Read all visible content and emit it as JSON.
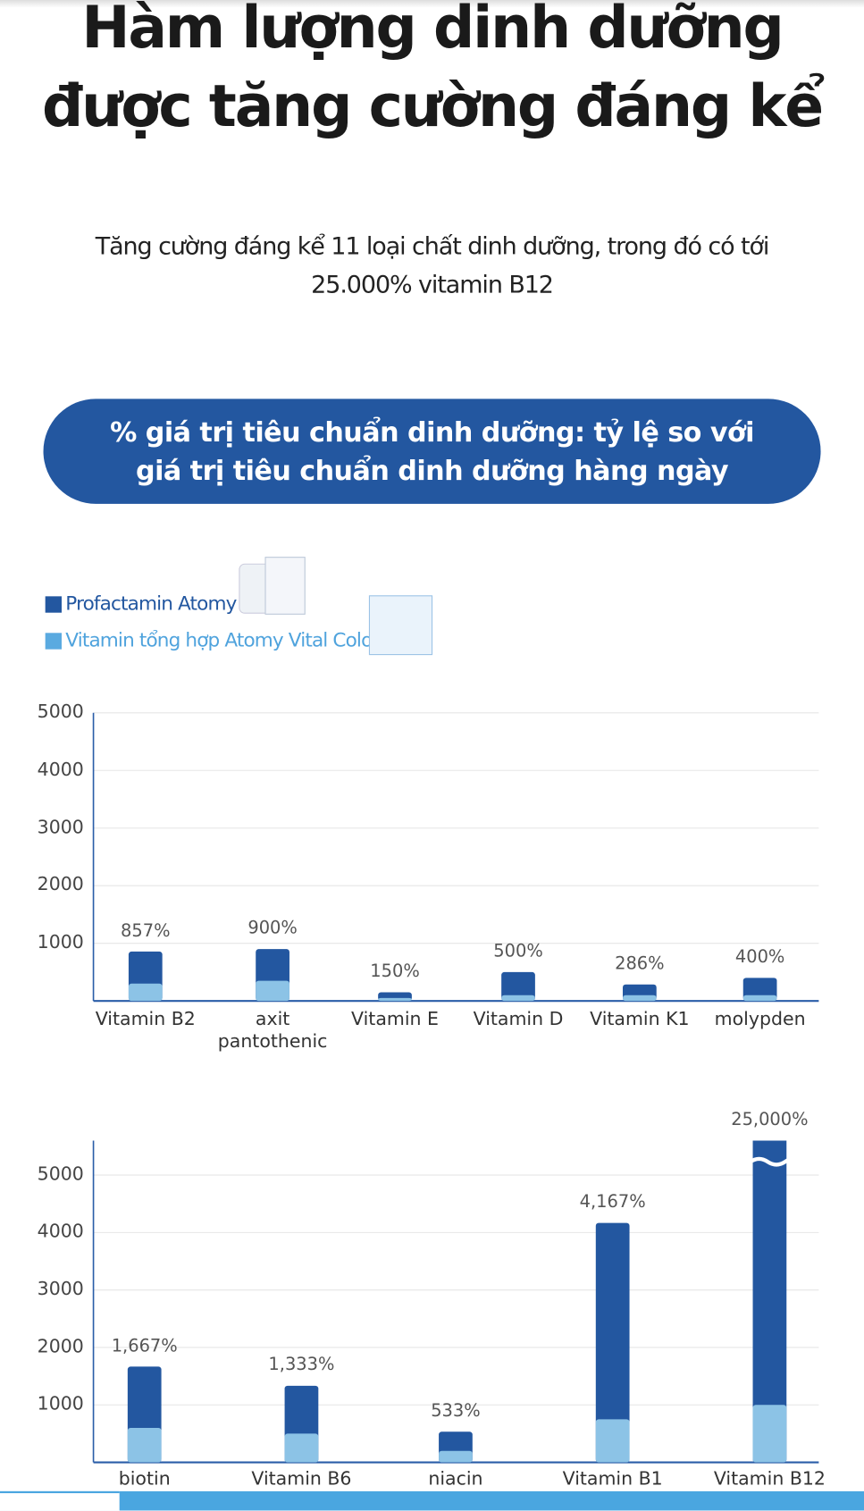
{
  "header": {
    "title": [
      "Hàm lượng dinh dưỡng",
      "được tăng cường đáng kể"
    ],
    "subtitle": "Tăng cường đáng kể 11 loại chất dinh dưỡng, trong đó có tới 25.000% vitamin B12",
    "banner": "% giá trị tiêu chuẩn dinh dưỡng: tỷ lệ so với giá trị tiêu chuẩn dinh dưỡng hàng ngày"
  },
  "chart_data": [
    {
      "type": "bar",
      "bar_mode": "overlay",
      "categories": [
        "Vitamin B2",
        "axit pantothenic",
        "Vitamin E",
        "Vitamin D",
        "Vitamin K1",
        "molypden"
      ],
      "series": [
        {
          "name": "Profactamin Atomy",
          "color": "#2357a0",
          "values": [
            857,
            900,
            150,
            500,
            286,
            400
          ],
          "value_labels": [
            "857%",
            "900%",
            "150%",
            "500%",
            "286%",
            "400%"
          ]
        },
        {
          "name": "Vitamin tổng hợp Atomy Vital Color",
          "color": "#8cc3e6",
          "values": [
            300,
            350,
            50,
            100,
            100,
            100
          ]
        }
      ],
      "ylim": [
        0,
        5000
      ],
      "yticks": [
        1000,
        2000,
        3000,
        4000,
        5000
      ],
      "grid": true
    },
    {
      "type": "bar",
      "bar_mode": "overlay",
      "categories": [
        "biotin",
        "Vitamin B6",
        "niacin",
        "Vitamin B1",
        "Vitamin B12"
      ],
      "series": [
        {
          "name": "Profactamin Atomy",
          "color": "#2357a0",
          "values": [
            1667,
            1333,
            533,
            4167,
            25000
          ],
          "value_labels": [
            "1,667%",
            "1,333%",
            "533%",
            "4,167%",
            "25,000%"
          ]
        },
        {
          "name": "Vitamin tổng hợp Atomy Vital Color",
          "color": "#8cc3e6",
          "values": [
            600,
            500,
            200,
            750,
            1000
          ]
        }
      ],
      "ylim": [
        0,
        5600
      ],
      "yticks": [
        1000,
        2000,
        3000,
        4000,
        5000
      ],
      "grid": true
    }
  ]
}
